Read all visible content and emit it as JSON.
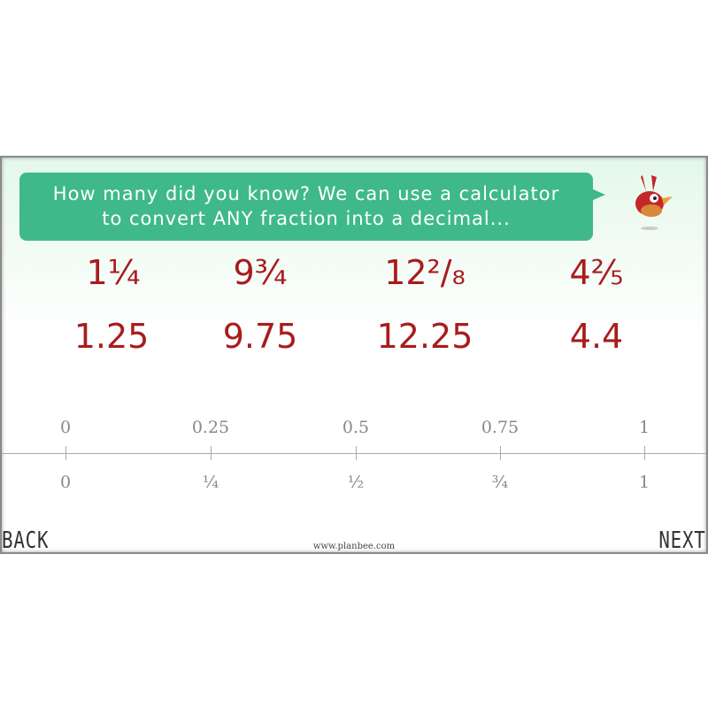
{
  "bubble_text": [
    "How many did you know? We can use a calculator",
    "to convert ANY fraction into a decimal..."
  ],
  "fractions": [
    "1¼",
    "9¾",
    "12²/₈",
    "4⅖"
  ],
  "decimals": [
    "1.25",
    "9.75",
    "12.25",
    "4.4"
  ],
  "number_line": {
    "decimal_labels": [
      "0",
      "0.25",
      "0.5",
      "0.75",
      "1"
    ],
    "fraction_labels": [
      "0",
      "¼",
      "½",
      "¾",
      "1"
    ]
  },
  "nav": {
    "back": "BACK",
    "next": "NEXT"
  },
  "footer_url": "www.planbee.com",
  "colors": {
    "bubble": "#3fb98a",
    "numbers": "#a81c1c"
  }
}
